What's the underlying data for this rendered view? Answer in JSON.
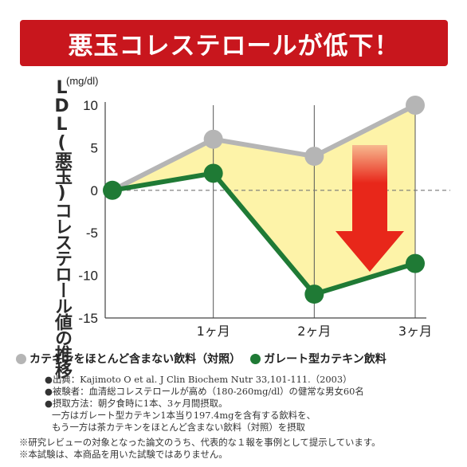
{
  "banner": {
    "title": "悪玉コレステロールが低下！"
  },
  "chart_data": {
    "type": "line",
    "ylabel": "LDL(悪玉)コレステロール値の推移",
    "unit": "(mg/dl)",
    "categories": [
      "",
      "1ヶ月",
      "2ヶ月",
      "3ヶ月"
    ],
    "x": [
      0,
      1,
      2,
      3
    ],
    "ylim": [
      -15,
      10
    ],
    "yticks": [
      "10",
      "5",
      "0",
      "-5",
      "-10",
      "-15"
    ],
    "ytick_values": [
      10,
      5,
      0,
      -5,
      -10,
      -15
    ],
    "grid": "vertical",
    "zero_line": "dashed",
    "fill_between_series": true,
    "series": [
      {
        "name": "カテキンをほとんど含まない飲料（対照）",
        "color": "#b5b5b5",
        "values": [
          0,
          6,
          4,
          10
        ]
      },
      {
        "name": "ガレート型カテキン飲料",
        "color": "#1f7a35",
        "values": [
          0,
          2,
          -12.2,
          -8.6
        ]
      }
    ],
    "fill_color": "#fdf3a8",
    "arrow_color": "#e8271a",
    "arrow": "downward"
  },
  "legend": {
    "control": "カテキンをほとんど含まない飲料（対照）",
    "treatment": "ガレート型カテキン飲料"
  },
  "notes": [
    "●出典：Kajimoto O et al. J Clin Biochem Nutr 33,101-111.（2003）",
    "●被験者：血清総コレステロールが高め（180-260mg/dl）の健常な男女60名",
    "●摂取方法：朝夕食時に1本、3ヶ月間摂取。",
    "一方はガレート型カテキン1本当り197.4mgを含有する飲料を、",
    "もう一方は茶カテキンをほとんど含まない飲料（対照）を摂取"
  ],
  "footnotes": [
    "※研究レビューの対象となった論文のうち、代表的な１報を事例として提示しています。",
    "※本試験は、本商品を用いた試験ではありません。"
  ]
}
